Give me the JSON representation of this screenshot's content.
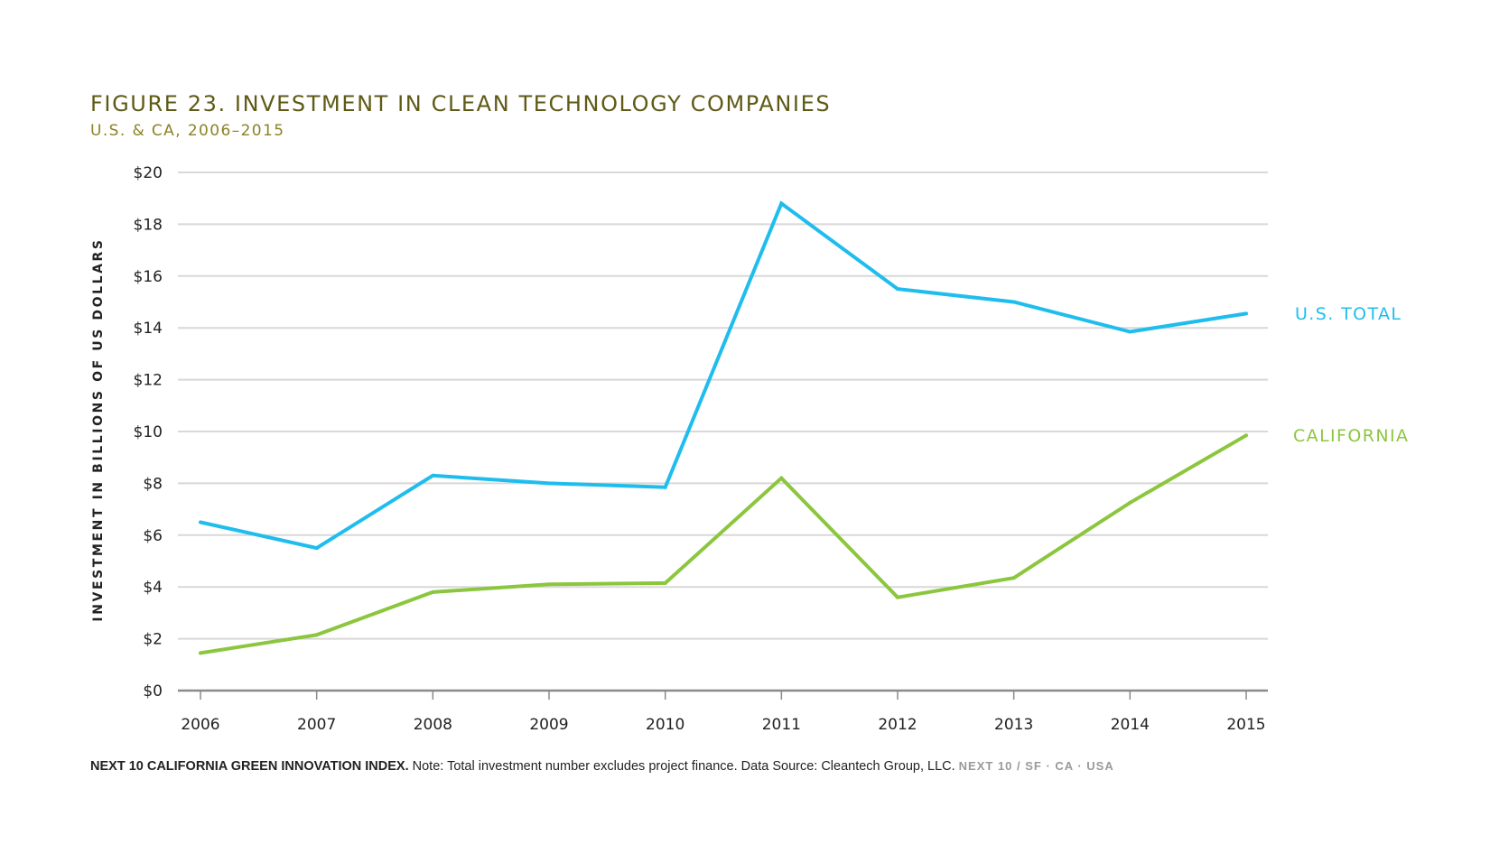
{
  "colors": {
    "title": "#5f5a16",
    "subtitle": "#8c8224",
    "us_total": "#1fbdee",
    "california": "#8cc63f",
    "grid": "#d8d8d8",
    "axis": "#8a8a8a",
    "text": "#222222"
  },
  "chart_data": {
    "type": "line",
    "title": "FIGURE 23. INVESTMENT IN CLEAN TECHNOLOGY COMPANIES",
    "subtitle": "U.S. & CA, 2006–2015",
    "xlabel": "",
    "ylabel": "INVESTMENT IN BILLIONS OF US DOLLARS",
    "x": [
      "2006",
      "2007",
      "2008",
      "2009",
      "2010",
      "2011",
      "2012",
      "2013",
      "2014",
      "2015"
    ],
    "ylim": [
      0,
      20
    ],
    "yticks": [
      {
        "value": 0,
        "label": "$0"
      },
      {
        "value": 2,
        "label": "$2"
      },
      {
        "value": 4,
        "label": "$4"
      },
      {
        "value": 6,
        "label": "$6"
      },
      {
        "value": 8,
        "label": "$8"
      },
      {
        "value": 10,
        "label": "$10"
      },
      {
        "value": 12,
        "label": "$12"
      },
      {
        "value": 14,
        "label": "$14"
      },
      {
        "value": 16,
        "label": "$16"
      },
      {
        "value": 18,
        "label": "$18"
      },
      {
        "value": 20,
        "label": "$20"
      }
    ],
    "grid": true,
    "legend": "right, inline labels",
    "series": [
      {
        "name": "U.S. TOTAL",
        "key": "us_total",
        "values": [
          6.5,
          5.5,
          8.3,
          8.0,
          7.85,
          18.8,
          15.5,
          15.0,
          13.85,
          14.55
        ]
      },
      {
        "name": "CALIFORNIA",
        "key": "california",
        "values": [
          1.45,
          2.15,
          3.8,
          4.1,
          4.15,
          8.2,
          3.6,
          4.35,
          7.25,
          9.85
        ]
      }
    ]
  },
  "footer": {
    "bold": "NEXT 10 CALIFORNIA GREEN INNOVATION INDEX.",
    "note": "Note: Total investment number excludes project finance. Data Source: Cleantech Group, LLC.",
    "brand": "NEXT 10  /  SF · CA · USA"
  }
}
